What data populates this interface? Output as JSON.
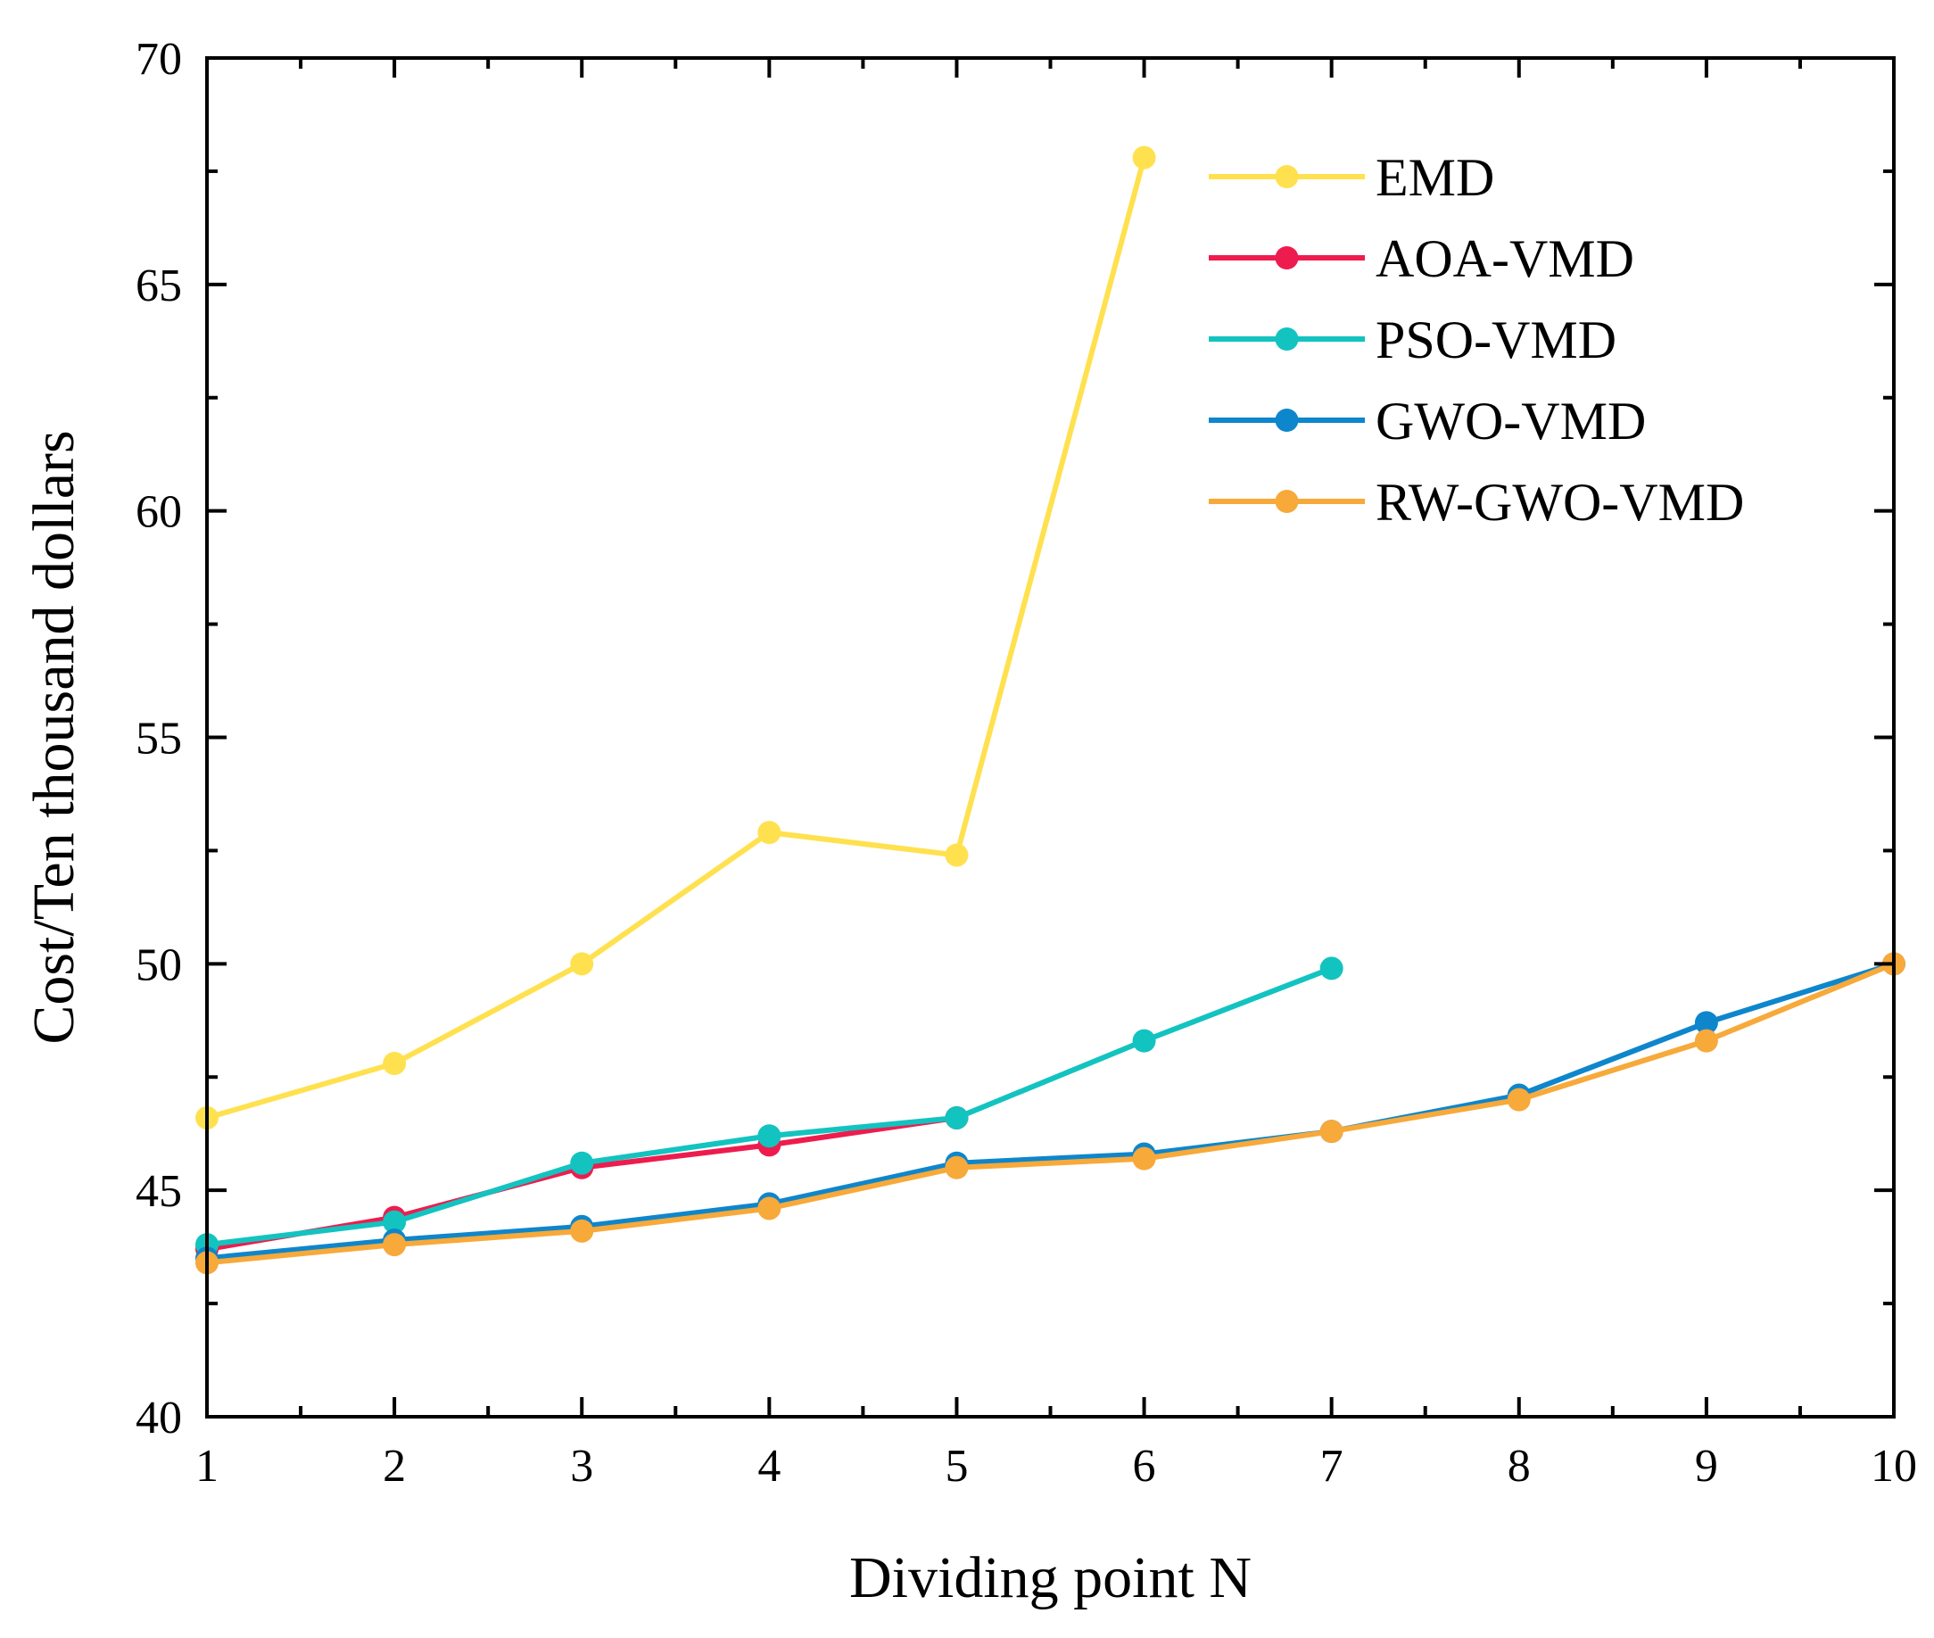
{
  "chart_data": {
    "type": "line",
    "title": "",
    "xlabel": "Dividing point N",
    "ylabel": "Cost/Ten thousand dollars",
    "xlim": [
      1,
      10
    ],
    "ylim": [
      40,
      70
    ],
    "xticks": [
      1,
      2,
      3,
      4,
      5,
      6,
      7,
      8,
      9,
      10
    ],
    "yticks": [
      40,
      45,
      50,
      55,
      60,
      65,
      70
    ],
    "legend_position": "top-right",
    "grid": false,
    "series": [
      {
        "name": "EMD",
        "color": "#FFE150",
        "x": [
          1,
          2,
          3,
          4,
          5,
          6
        ],
        "values": [
          46.6,
          47.8,
          50.0,
          52.9,
          52.4,
          67.8
        ]
      },
      {
        "name": "AOA-VMD",
        "color": "#EE1C4E",
        "x": [
          1,
          2,
          3,
          4,
          5
        ],
        "values": [
          43.7,
          44.4,
          45.5,
          46.0,
          46.6
        ]
      },
      {
        "name": "PSO-VMD",
        "color": "#13C3C0",
        "x": [
          1,
          2,
          3,
          4,
          5,
          6,
          7
        ],
        "values": [
          43.8,
          44.3,
          45.6,
          46.2,
          46.6,
          48.3,
          49.9
        ]
      },
      {
        "name": "GWO-VMD",
        "color": "#0E86CC",
        "x": [
          1,
          2,
          3,
          4,
          5,
          6,
          7,
          8,
          9,
          10
        ],
        "values": [
          43.5,
          43.9,
          44.2,
          44.7,
          45.6,
          45.8,
          46.3,
          47.1,
          48.7,
          50.0
        ]
      },
      {
        "name": "RW-GWO-VMD",
        "color": "#F7A93A",
        "x": [
          1,
          2,
          3,
          4,
          5,
          6,
          7,
          8,
          9,
          10
        ],
        "values": [
          43.4,
          43.8,
          44.1,
          44.6,
          45.5,
          45.7,
          46.3,
          47.0,
          48.3,
          50.0
        ]
      }
    ]
  }
}
